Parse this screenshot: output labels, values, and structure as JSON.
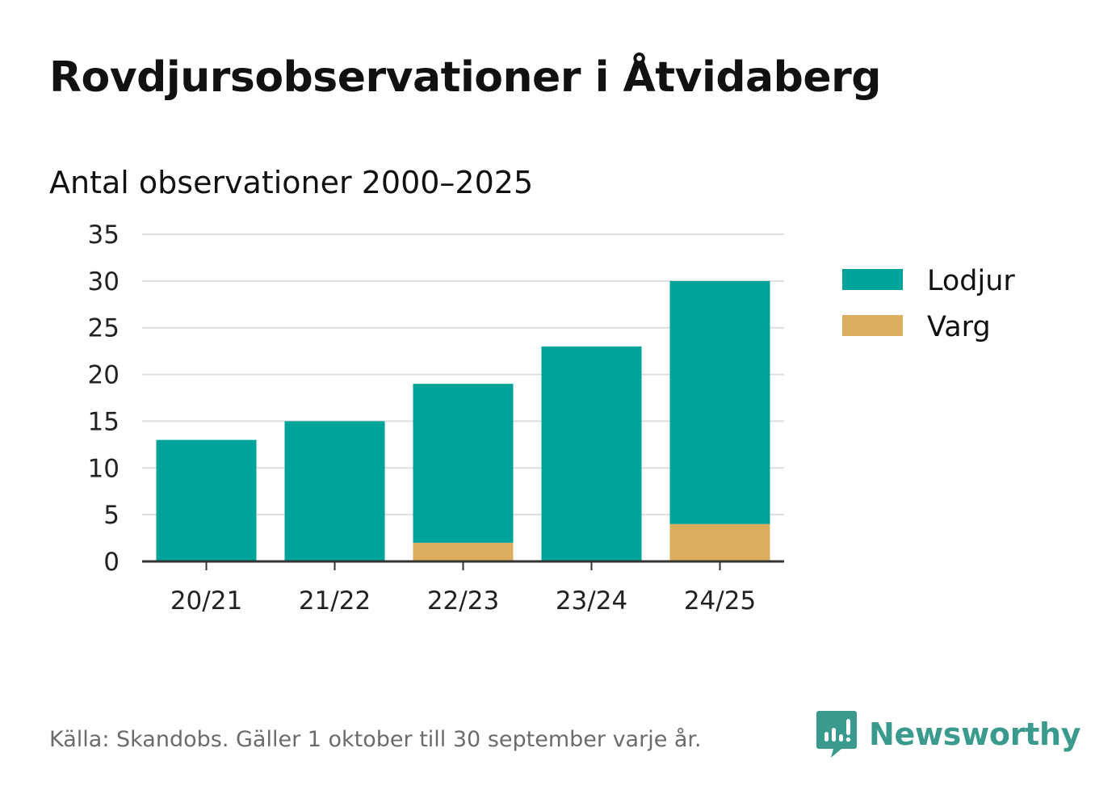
{
  "title": "Rovdjursobservationer i Åtvidaberg",
  "chart_data": {
    "type": "bar",
    "stacked": true,
    "title": "Rovdjursobservationer i Åtvidaberg",
    "subtitle": "Antal observationer 2000–2025",
    "categories": [
      "20/21",
      "21/22",
      "22/23",
      "23/24",
      "24/25"
    ],
    "series": [
      {
        "name": "Varg",
        "color": "#dbad5c",
        "values": [
          0,
          0,
          2,
          0,
          4
        ]
      },
      {
        "name": "Lodjur",
        "color": "#00a39a",
        "values": [
          13,
          15,
          17,
          23,
          26
        ]
      }
    ],
    "legend_order": [
      "Lodjur",
      "Varg"
    ],
    "legend_position": "right",
    "ylim": [
      0,
      35
    ],
    "yticks": [
      0,
      5,
      10,
      15,
      20,
      25,
      30,
      35
    ],
    "grid": true,
    "xlabel": "",
    "ylabel": ""
  },
  "footer": {
    "source": "Källa: Skandobs. Gäller 1 oktober till 30 september varje år.",
    "brand": "Newsworthy",
    "brand_logo": "bar-chart-speech-bubble-icon",
    "brand_color": "#3a9a8e"
  }
}
